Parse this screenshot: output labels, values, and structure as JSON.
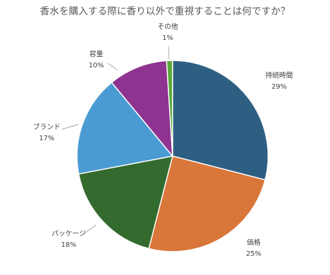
{
  "chart_data": {
    "type": "pie",
    "title": "香水を購入する際に香り以外で重視することは何ですか？",
    "categories": [
      "持続時間",
      "価格",
      "パッケージ",
      "ブランド",
      "容量",
      "その他"
    ],
    "values": [
      29,
      25,
      18,
      17,
      10,
      1
    ],
    "labels": [
      "29%",
      "25%",
      "18%",
      "17%",
      "10%",
      "1%"
    ],
    "colors": [
      "#2e5f82",
      "#d9763a",
      "#336b2e",
      "#4a9bd2",
      "#8e3390",
      "#5aa83a"
    ],
    "start_angle": "12 o'clock",
    "direction": "clockwise",
    "legend": "none"
  }
}
